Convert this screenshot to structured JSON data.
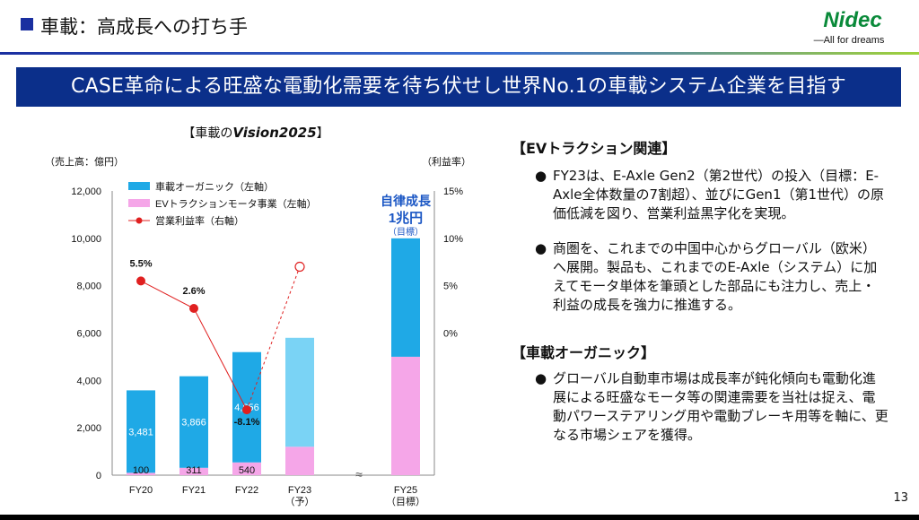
{
  "header": {
    "title": "車載：高成長への打ち手",
    "logo_text": "Nidec",
    "logo_tagline": "—All for dreams"
  },
  "banner": {
    "text": "CASE革命による旺盛な電動化需要を待ち伏せし世界No.1の車載システム企業を目指す"
  },
  "chart": {
    "title_prefix": "【車載の",
    "title_vision": "Vision2025",
    "title_suffix": "】",
    "unit_left": "（売上高：億円）",
    "unit_right": "（利益率）",
    "target_label_1": "自律成長",
    "target_label_2": "1兆円",
    "target_label_3": "（目標）",
    "break_mark": "≈"
  },
  "colors": {
    "organic": "#1fa9e6",
    "organic_forecast": "#7ad3f5",
    "ev_motor": "#f5a6e8",
    "margin_line": "#e02020",
    "banner_bg": "#0b2f8a",
    "accent_blue": "#1a2fa0"
  },
  "chart_data": {
    "type": "bar",
    "categories": [
      "FY20",
      "FY21",
      "FY22",
      "FY23\n（予）",
      "FY25\n（目標）"
    ],
    "category_lines": [
      [
        "FY20"
      ],
      [
        "FY21"
      ],
      [
        "FY22"
      ],
      [
        "FY23",
        "（予）"
      ],
      [
        "FY25",
        "（目標）"
      ]
    ],
    "series": [
      {
        "name": "車載オーガニック（左軸）",
        "axis": "left",
        "values": [
          3481,
          3866,
          4656,
          4600,
          5000
        ],
        "labels": [
          "3,481",
          "3,866",
          "4,656",
          "",
          ""
        ]
      },
      {
        "name": "EVトラクションモータ事業（左軸）",
        "axis": "left",
        "values": [
          100,
          311,
          540,
          1200,
          5000
        ],
        "labels": [
          "100",
          "311",
          "540",
          "",
          ""
        ]
      },
      {
        "name": "営業利益率（右軸）",
        "axis": "right",
        "type": "line",
        "values": [
          5.5,
          2.6,
          -8.1,
          7.0,
          null
        ],
        "labels": [
          "5.5%",
          "2.6%",
          "-8.1%",
          "",
          ""
        ],
        "forecast_index": 3
      }
    ],
    "legend": [
      "車載オーガニック（左軸）",
      "EVトラクションモータ事業（左軸）",
      "営業利益率（右軸）"
    ],
    "legend_position": "top-left",
    "ylim_left": [
      0,
      12000
    ],
    "yticks_left": [
      "0",
      "2,000",
      "4,000",
      "6,000",
      "8,000",
      "10,000",
      "12,000"
    ],
    "ytick_values_left": [
      0,
      2000,
      4000,
      6000,
      8000,
      10000,
      12000
    ],
    "ylim_right": [
      -15,
      15
    ],
    "yticks_right": [
      "0%",
      "5%",
      "10%",
      "15%"
    ],
    "ytick_values_right": [
      0,
      5,
      10,
      15
    ],
    "grid": false
  },
  "sections": [
    {
      "heading": "【EVトラクション関連】",
      "bullets": [
        "FY23は、E-Axle Gen2（第2世代）の投入（目標：E-Axle全体数量の7割超）、並びにGen1（第1世代）の原価低減を図り、営業利益黒字化を実現。",
        "商圏を、これまでの中国中心からグローバル（欧米）へ展開。製品も、これまでのE-Axle（システム）に加えてモータ単体を筆頭とした部品にも注力し、売上・利益の成長を強力に推進する。"
      ]
    },
    {
      "heading": "【車載オーガニック】",
      "bullets": [
        "グローバル自動車市場は成長率が鈍化傾向も電動化進展による旺盛なモータ等の関連需要を当社は捉え、電動パワーステアリング用や電動ブレーキ用等を軸に、更なる市場シェアを獲得。"
      ]
    }
  ],
  "bullet_mark": "●",
  "page_number": "13"
}
